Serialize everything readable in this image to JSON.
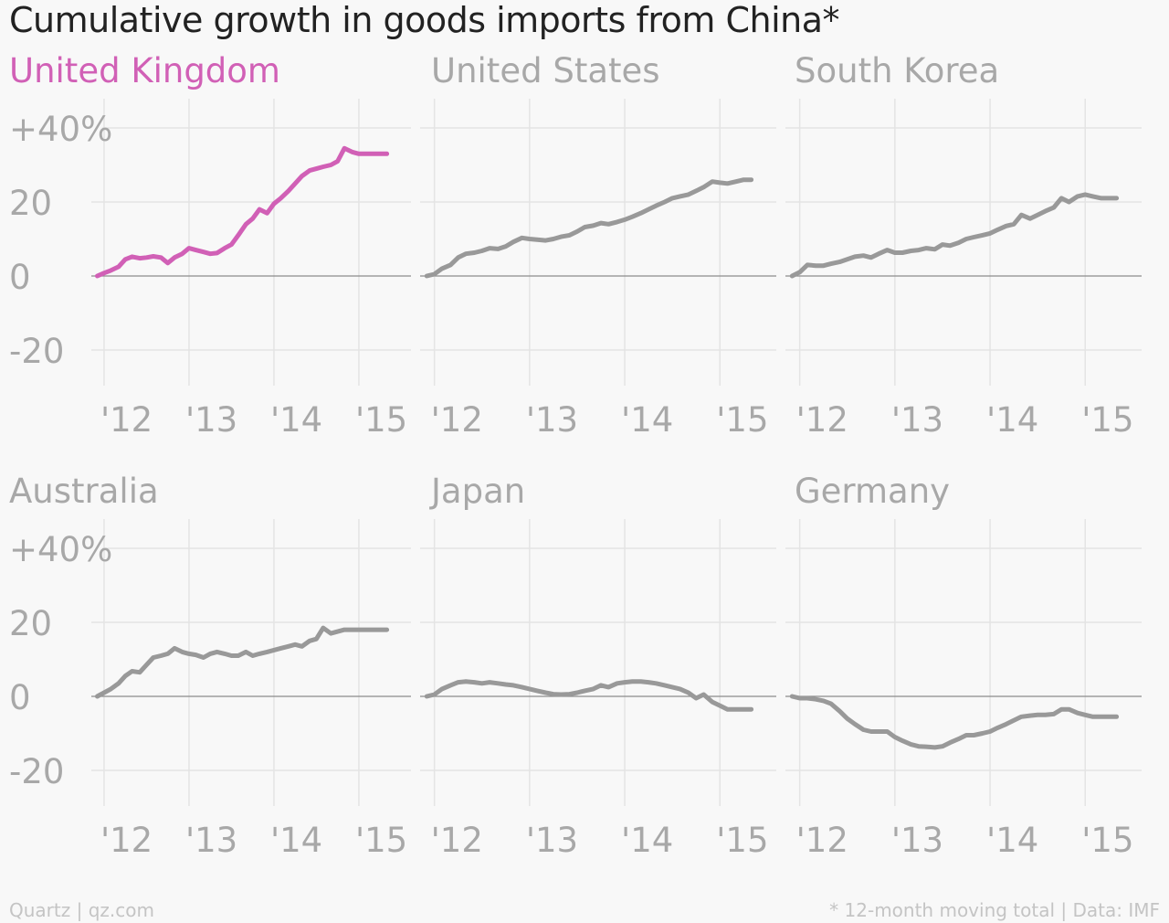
{
  "title": "Cumulative growth in goods imports from China*",
  "footer": {
    "source": "Quartz | qz.com",
    "note": "* 12-month moving total | Data: IMF"
  },
  "colors": {
    "highlight": "#d160b6",
    "line": "#999999",
    "grid": "#e4e4e4",
    "zero": "#8c8c8c",
    "label": "#a8a8a8"
  },
  "chart_data": [
    {
      "type": "line",
      "title": "United Kingdom",
      "highlight": true,
      "ylim": [
        -30,
        45
      ],
      "yticks": [
        -20,
        0,
        20,
        40
      ],
      "ytick_labels": [
        "-20",
        "0",
        "20",
        "+40%"
      ],
      "xticks": [
        2012,
        2013,
        2014,
        2015
      ],
      "xtick_labels": [
        "'12",
        "'13",
        "'14",
        "'15"
      ],
      "x": [
        2011.92,
        2012.0,
        2012.08,
        2012.17,
        2012.25,
        2012.33,
        2012.42,
        2012.5,
        2012.58,
        2012.67,
        2012.75,
        2012.83,
        2012.92,
        2013.0,
        2013.08,
        2013.17,
        2013.25,
        2013.33,
        2013.42,
        2013.5,
        2013.58,
        2013.67,
        2013.75,
        2013.83,
        2013.92,
        2014.0,
        2014.08,
        2014.17,
        2014.25,
        2014.33,
        2014.42,
        2014.5,
        2014.58,
        2014.67,
        2014.75,
        2014.83,
        2014.92,
        2015.0,
        2015.08,
        2015.17,
        2015.25,
        2015.33
      ],
      "y": [
        0,
        0.8,
        1.5,
        2.5,
        4.5,
        5.2,
        4.8,
        5.0,
        5.3,
        5.0,
        3.5,
        5.0,
        6.0,
        7.5,
        7.0,
        6.5,
        6.0,
        6.2,
        7.5,
        8.5,
        11.0,
        14.0,
        15.5,
        18.0,
        17.0,
        19.5,
        21.0,
        23.0,
        25.0,
        27.0,
        28.5,
        29.0,
        29.5,
        30.0,
        31.0,
        34.5,
        33.5,
        33.0,
        33.0,
        33.0,
        33.0,
        33.0
      ]
    },
    {
      "type": "line",
      "title": "United States",
      "highlight": false,
      "ylim": [
        -30,
        45
      ],
      "yticks": [
        -20,
        0,
        20,
        40
      ],
      "ytick_labels": [
        "",
        "",
        "",
        ""
      ],
      "xticks": [
        2012,
        2013,
        2014,
        2015
      ],
      "xtick_labels": [
        "'12",
        "'13",
        "'14",
        "'15"
      ],
      "x": [
        2011.92,
        2012.0,
        2012.08,
        2012.17,
        2012.25,
        2012.33,
        2012.42,
        2012.5,
        2012.58,
        2012.67,
        2012.75,
        2012.83,
        2012.92,
        2013.0,
        2013.08,
        2013.17,
        2013.25,
        2013.33,
        2013.42,
        2013.5,
        2013.58,
        2013.67,
        2013.75,
        2013.83,
        2013.92,
        2014.0,
        2014.08,
        2014.17,
        2014.25,
        2014.33,
        2014.42,
        2014.5,
        2014.58,
        2014.67,
        2014.75,
        2014.83,
        2014.92,
        2015.0,
        2015.08,
        2015.17,
        2015.25,
        2015.33
      ],
      "y": [
        0,
        0.5,
        2.0,
        3.0,
        5.0,
        6.0,
        6.3,
        6.8,
        7.5,
        7.3,
        8.0,
        9.2,
        10.3,
        10.0,
        9.8,
        9.6,
        10.0,
        10.6,
        11.0,
        12.0,
        13.2,
        13.6,
        14.3,
        14.0,
        14.6,
        15.2,
        16.0,
        17.0,
        18.0,
        19.0,
        20.0,
        21.0,
        21.5,
        22.0,
        23.0,
        24.0,
        25.5,
        25.2,
        25.0,
        25.5,
        26.0,
        26.0
      ]
    },
    {
      "type": "line",
      "title": "South Korea",
      "highlight": false,
      "ylim": [
        -30,
        45
      ],
      "yticks": [
        -20,
        0,
        20,
        40
      ],
      "ytick_labels": [
        "",
        "",
        "",
        ""
      ],
      "xticks": [
        2012,
        2013,
        2014,
        2015
      ],
      "xtick_labels": [
        "'12",
        "'13",
        "'14",
        "'15"
      ],
      "x": [
        2011.92,
        2012.0,
        2012.08,
        2012.17,
        2012.25,
        2012.33,
        2012.42,
        2012.5,
        2012.58,
        2012.67,
        2012.75,
        2012.83,
        2012.92,
        2013.0,
        2013.08,
        2013.17,
        2013.25,
        2013.33,
        2013.42,
        2013.5,
        2013.58,
        2013.67,
        2013.75,
        2013.83,
        2013.92,
        2014.0,
        2014.08,
        2014.17,
        2014.25,
        2014.33,
        2014.42,
        2014.5,
        2014.58,
        2014.67,
        2014.75,
        2014.83,
        2014.92,
        2015.0,
        2015.08,
        2015.17,
        2015.25,
        2015.33
      ],
      "y": [
        0,
        1.0,
        3.0,
        2.8,
        2.8,
        3.3,
        3.8,
        4.5,
        5.2,
        5.5,
        5.0,
        6.0,
        7.0,
        6.3,
        6.3,
        6.8,
        7.0,
        7.5,
        7.2,
        8.5,
        8.2,
        9.0,
        10.0,
        10.5,
        11.0,
        11.5,
        12.5,
        13.5,
        14.0,
        16.5,
        15.5,
        16.5,
        17.5,
        18.5,
        21.0,
        20.0,
        21.5,
        22.0,
        21.5,
        21.0,
        21.0,
        21.0
      ]
    },
    {
      "type": "line",
      "title": "Australia",
      "highlight": false,
      "ylim": [
        -30,
        45
      ],
      "yticks": [
        -20,
        0,
        20,
        40
      ],
      "ytick_labels": [
        "-20",
        "0",
        "20",
        "+40%"
      ],
      "xticks": [
        2012,
        2013,
        2014,
        2015
      ],
      "xtick_labels": [
        "'12",
        "'13",
        "'14",
        "'15"
      ],
      "x": [
        2011.92,
        2012.0,
        2012.08,
        2012.17,
        2012.25,
        2012.33,
        2012.42,
        2012.5,
        2012.58,
        2012.67,
        2012.75,
        2012.83,
        2012.92,
        2013.0,
        2013.08,
        2013.17,
        2013.25,
        2013.33,
        2013.42,
        2013.5,
        2013.58,
        2013.67,
        2013.75,
        2013.83,
        2013.92,
        2014.0,
        2014.08,
        2014.17,
        2014.25,
        2014.33,
        2014.42,
        2014.5,
        2014.58,
        2014.67,
        2014.75,
        2014.83,
        2014.92,
        2015.0,
        2015.08,
        2015.17,
        2015.25,
        2015.33
      ],
      "y": [
        0,
        1.0,
        2.0,
        3.5,
        5.5,
        6.8,
        6.5,
        8.5,
        10.5,
        11.0,
        11.5,
        13.0,
        12.0,
        11.5,
        11.2,
        10.5,
        11.5,
        12.0,
        11.5,
        11.0,
        11.0,
        12.0,
        11.0,
        11.5,
        12.0,
        12.5,
        13.0,
        13.5,
        14.0,
        13.5,
        15.0,
        15.5,
        18.5,
        17.0,
        17.5,
        18.0,
        18.0,
        18.0,
        18.0,
        18.0,
        18.0,
        18.0
      ]
    },
    {
      "type": "line",
      "title": "Japan",
      "highlight": false,
      "ylim": [
        -30,
        45
      ],
      "yticks": [
        -20,
        0,
        20,
        40
      ],
      "ytick_labels": [
        "",
        "",
        "",
        ""
      ],
      "xticks": [
        2012,
        2013,
        2014,
        2015
      ],
      "xtick_labels": [
        "'12",
        "'13",
        "'14",
        "'15"
      ],
      "x": [
        2011.92,
        2012.0,
        2012.08,
        2012.17,
        2012.25,
        2012.33,
        2012.42,
        2012.5,
        2012.58,
        2012.67,
        2012.75,
        2012.83,
        2012.92,
        2013.0,
        2013.08,
        2013.17,
        2013.25,
        2013.33,
        2013.42,
        2013.5,
        2013.58,
        2013.67,
        2013.75,
        2013.83,
        2013.92,
        2014.0,
        2014.08,
        2014.17,
        2014.25,
        2014.33,
        2014.42,
        2014.5,
        2014.58,
        2014.67,
        2014.75,
        2014.83,
        2014.92,
        2015.0,
        2015.08,
        2015.17,
        2015.25,
        2015.33
      ],
      "y": [
        0,
        0.5,
        2.0,
        3.0,
        3.8,
        4.0,
        3.8,
        3.5,
        3.8,
        3.5,
        3.2,
        3.0,
        2.5,
        2.0,
        1.5,
        1.0,
        0.6,
        0.5,
        0.6,
        1.0,
        1.5,
        2.0,
        3.0,
        2.5,
        3.5,
        3.8,
        4.0,
        4.0,
        3.8,
        3.5,
        3.0,
        2.5,
        2.0,
        1.0,
        -0.5,
        0.5,
        -1.5,
        -2.5,
        -3.5,
        -3.5,
        -3.5,
        -3.5
      ]
    },
    {
      "type": "line",
      "title": "Germany",
      "highlight": false,
      "ylim": [
        -30,
        45
      ],
      "yticks": [
        -20,
        0,
        20,
        40
      ],
      "ytick_labels": [
        "",
        "",
        "",
        ""
      ],
      "xticks": [
        2012,
        2013,
        2014,
        2015
      ],
      "xtick_labels": [
        "'12",
        "'13",
        "'14",
        "'15"
      ],
      "x": [
        2011.92,
        2012.0,
        2012.08,
        2012.17,
        2012.25,
        2012.33,
        2012.42,
        2012.5,
        2012.58,
        2012.67,
        2012.75,
        2012.83,
        2012.92,
        2013.0,
        2013.08,
        2013.17,
        2013.25,
        2013.33,
        2013.42,
        2013.5,
        2013.58,
        2013.67,
        2013.75,
        2013.83,
        2013.92,
        2014.0,
        2014.08,
        2014.17,
        2014.25,
        2014.33,
        2014.42,
        2014.5,
        2014.58,
        2014.67,
        2014.75,
        2014.83,
        2014.92,
        2015.0,
        2015.08,
        2015.17,
        2015.25,
        2015.33
      ],
      "y": [
        0,
        -0.5,
        -0.5,
        -0.8,
        -1.2,
        -2.0,
        -4.0,
        -6.0,
        -7.5,
        -9.0,
        -9.5,
        -9.5,
        -9.5,
        -11.0,
        -12.0,
        -13.0,
        -13.5,
        -13.6,
        -13.8,
        -13.5,
        -12.5,
        -11.5,
        -10.5,
        -10.5,
        -10.0,
        -9.5,
        -8.5,
        -7.5,
        -6.5,
        -5.5,
        -5.2,
        -5.0,
        -5.0,
        -4.8,
        -3.5,
        -3.5,
        -4.5,
        -5.0,
        -5.5,
        -5.5,
        -5.5,
        -5.5
      ]
    }
  ]
}
